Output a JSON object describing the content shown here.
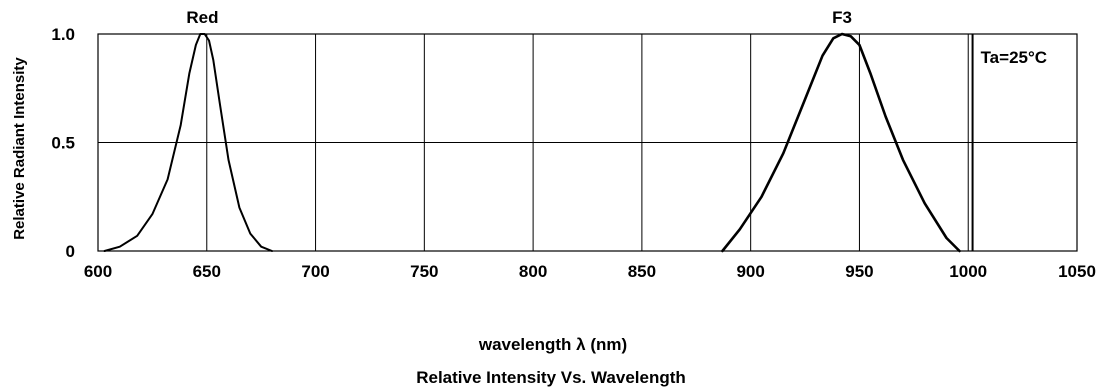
{
  "chart_data": {
    "type": "line",
    "title": "Relative Intensity Vs. Wavelength",
    "xlabel": "wavelength λ (nm)",
    "ylabel": "Relative Radiant Intensity",
    "xlim": [
      600,
      1050
    ],
    "ylim": [
      0,
      1.0
    ],
    "x_ticks": [
      600,
      650,
      700,
      750,
      800,
      850,
      900,
      950,
      1000,
      1050
    ],
    "y_ticks": [
      0,
      0.5,
      1.0
    ],
    "x_tick_labels": [
      "600",
      "650",
      "700",
      "750",
      "800",
      "850",
      "900",
      "950",
      "1000",
      "1050"
    ],
    "y_tick_labels": [
      "0",
      "0.5",
      "1.0"
    ],
    "grid": true,
    "annotation": "Ta=25°C",
    "annotation_placement": "top-right",
    "series": [
      {
        "name": "Red",
        "x": [
          603,
          610,
          618,
          625,
          632,
          638,
          642,
          645,
          647,
          649,
          651,
          653,
          656,
          660,
          665,
          670,
          675,
          680
        ],
        "y": [
          0.0,
          0.02,
          0.07,
          0.17,
          0.33,
          0.58,
          0.82,
          0.95,
          1.0,
          1.0,
          0.97,
          0.88,
          0.68,
          0.42,
          0.2,
          0.08,
          0.02,
          0.0
        ]
      },
      {
        "name": "F3",
        "x": [
          887,
          895,
          905,
          915,
          925,
          933,
          938,
          942,
          946,
          950,
          955,
          962,
          970,
          980,
          990,
          996
        ],
        "y": [
          0.0,
          0.1,
          0.25,
          0.45,
          0.7,
          0.9,
          0.98,
          1.0,
          0.99,
          0.95,
          0.82,
          0.62,
          0.42,
          0.22,
          0.06,
          0.0
        ]
      }
    ]
  }
}
